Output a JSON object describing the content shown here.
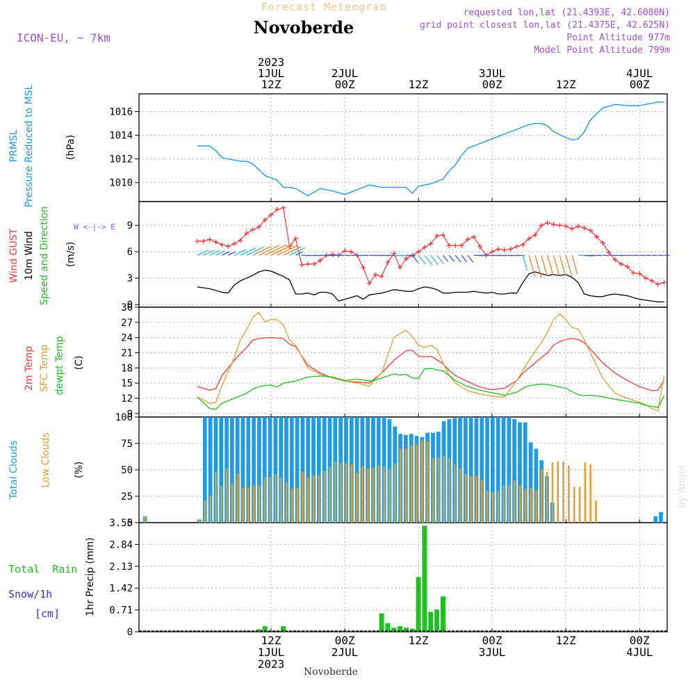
{
  "header": {
    "suptitle": "Forecast Meteogram",
    "title": "Novoberde",
    "model": "ICON-EU, ~ 7km",
    "info": [
      "requested lon,lat (21.4393E, 42.6080N)",
      "grid point closest lon,lat (21.4375E, 42.625N)",
      "Point Altitude 977m",
      "Model Point Altitude 799m"
    ],
    "watermark": "by Angel",
    "footer": "Novoberde"
  },
  "colors": {
    "pressure": "#1e9be6",
    "gust": "#f03c3c",
    "wind": "#000000",
    "wind_dir": "#20c020",
    "temp": "#f03c3c",
    "sfc": "#e0a030",
    "dew": "#20c020",
    "total_clouds": "#1e9be6",
    "low_clouds": "#e0a030",
    "rain": "#20c020",
    "snow": "#3030e0",
    "purple": "#a050d0"
  },
  "time_axis": {
    "top_ticks": [
      {
        "h": 12,
        "lines": [
          "2023",
          "1JUL",
          "12Z"
        ]
      },
      {
        "h": 24,
        "lines": [
          "2JUL",
          "00Z"
        ]
      },
      {
        "h": 36,
        "lines": [
          "12Z"
        ]
      },
      {
        "h": 48,
        "lines": [
          "3JUL",
          "00Z"
        ]
      },
      {
        "h": 60,
        "lines": [
          "12Z"
        ]
      },
      {
        "h": 72,
        "lines": [
          "4JUL",
          "00Z"
        ]
      }
    ],
    "bottom_ticks": [
      {
        "h": 12,
        "lines": [
          "12Z",
          "1JUL",
          "2023"
        ]
      },
      {
        "h": 24,
        "lines": [
          "00Z",
          "2JUL"
        ]
      },
      {
        "h": 36,
        "lines": [
          "12Z"
        ]
      },
      {
        "h": 48,
        "lines": [
          "00Z",
          "3JUL"
        ]
      },
      {
        "h": 60,
        "lines": [
          "12Z"
        ]
      },
      {
        "h": 72,
        "lines": [
          "00Z",
          "4JUL"
        ]
      }
    ]
  },
  "panels": {
    "pressure": {
      "labels": [
        "PRMSL",
        "Pressure Reduced to MSL"
      ],
      "unit": "(hPa)"
    },
    "wind": {
      "labels": [
        "Wind GUST",
        "10m Wind",
        "Speed and Direction"
      ],
      "unit": "(m/s)",
      "compass": "W <-|-> E"
    },
    "temp": {
      "labels": [
        "2m Temp",
        "SFC Temp",
        "dewpt Temp"
      ],
      "unit": "(C)"
    },
    "clouds": {
      "labels": [
        "Total Clouds",
        "Low Clouds"
      ],
      "unit": "(%)"
    },
    "precip": {
      "labels": [
        "Total  Rain",
        "Snow/1h",
        "[cm]"
      ],
      "unit": "1hr Precip (mm)"
    }
  },
  "chart_data": [
    {
      "type": "line",
      "name": "PRMSL",
      "ylabel": "(hPa)",
      "yticks": [
        1010,
        1012,
        1014,
        1016
      ],
      "ylim": [
        1008.4,
        1017.5
      ],
      "x_hours": [
        0,
        2,
        3,
        4,
        6,
        7,
        8,
        9,
        10,
        11,
        12,
        13,
        14,
        15,
        16,
        18,
        20,
        22,
        24,
        26,
        28,
        30,
        32,
        34,
        35,
        36,
        37,
        38,
        40,
        41,
        42,
        43,
        44,
        46,
        48,
        50,
        52,
        54,
        55,
        56,
        57,
        58,
        60,
        61,
        62,
        63,
        64,
        66,
        68,
        70,
        72,
        74,
        75,
        76
      ],
      "values": [
        1013.1,
        1013.1,
        1012.7,
        1012.1,
        1011.9,
        1011.8,
        1011.8,
        1011.6,
        1011.1,
        1010.6,
        1010.4,
        1010.2,
        1009.6,
        1009.6,
        1009.5,
        1008.9,
        1009.5,
        1009.3,
        1009.0,
        1009.4,
        1009.8,
        1009.6,
        1009.6,
        1009.6,
        1009.1,
        1009.7,
        1009.8,
        1009.9,
        1010.3,
        1011.0,
        1011.5,
        1012.3,
        1012.9,
        1013.3,
        1013.7,
        1014.1,
        1014.5,
        1014.9,
        1015.0,
        1015.0,
        1014.8,
        1014.3,
        1013.8,
        1013.6,
        1013.7,
        1014.3,
        1015.3,
        1016.3,
        1016.6,
        1016.5,
        1016.5,
        1016.7,
        1016.8,
        1016.8
      ]
    },
    {
      "type": "line",
      "name": "Wind",
      "ylabel": "(m/s)",
      "yticks": [
        0,
        3,
        6,
        9
      ],
      "ylim": [
        -0.3,
        11.7
      ],
      "series": [
        {
          "name": "Wind GUST",
          "x_hours": [
            0,
            1,
            2,
            3,
            4,
            5,
            6,
            7,
            8,
            9,
            10,
            11,
            12,
            13,
            14,
            15,
            16,
            17,
            18,
            19,
            20,
            21,
            22,
            23,
            24,
            25,
            26,
            27,
            28,
            29,
            30,
            31,
            32,
            33,
            34,
            35,
            36,
            37,
            38,
            39,
            40,
            41,
            42,
            43,
            44,
            45,
            46,
            47,
            48,
            49,
            50,
            51,
            52,
            53,
            54,
            55,
            56,
            57,
            58,
            59,
            60,
            61,
            62,
            63,
            64,
            65,
            66,
            67,
            68,
            69,
            70,
            71,
            72,
            73,
            74,
            75,
            76
          ],
          "values": [
            7.2,
            7.2,
            7.4,
            7.1,
            6.8,
            6.6,
            6.9,
            7.3,
            8.1,
            8.5,
            8.8,
            9.6,
            10.2,
            10.8,
            11.0,
            6.6,
            7.5,
            4.5,
            4.6,
            4.6,
            5.0,
            5.6,
            5.7,
            5.6,
            6.1,
            6.0,
            5.6,
            4.2,
            2.4,
            3.4,
            3.2,
            4.8,
            5.8,
            4.2,
            5.2,
            5.6,
            6.0,
            6.5,
            6.9,
            7.8,
            7.9,
            6.7,
            6.7,
            6.7,
            7.4,
            7.7,
            6.6,
            5.6,
            6.0,
            6.3,
            6.2,
            6.3,
            6.6,
            6.8,
            7.5,
            7.9,
            9.0,
            9.3,
            9.1,
            9.0,
            8.9,
            8.6,
            8.9,
            8.7,
            8.4,
            7.7,
            7.0,
            5.9,
            5.1,
            4.6,
            4.3,
            3.6,
            3.5,
            3.0,
            2.7,
            2.3,
            2.5
          ]
        },
        {
          "name": "10m Wind",
          "x_hours": [
            0,
            1,
            2,
            3,
            4,
            5,
            6,
            7,
            8,
            9,
            10,
            11,
            12,
            13,
            14,
            15,
            16,
            17,
            18,
            19,
            20,
            21,
            22,
            23,
            24,
            25,
            26,
            27,
            28,
            29,
            30,
            31,
            32,
            33,
            34,
            35,
            36,
            37,
            38,
            39,
            40,
            41,
            42,
            43,
            44,
            45,
            46,
            47,
            48,
            49,
            50,
            51,
            52,
            53,
            54,
            55,
            56,
            57,
            58,
            59,
            60,
            61,
            62,
            63,
            64,
            65,
            66,
            67,
            68,
            69,
            70,
            71,
            72,
            73,
            74,
            75,
            76
          ],
          "values": [
            2.0,
            1.9,
            1.8,
            1.6,
            1.4,
            1.3,
            2.2,
            2.7,
            3.0,
            3.3,
            3.7,
            3.9,
            3.8,
            3.5,
            3.2,
            2.8,
            1.2,
            1.2,
            1.3,
            1.1,
            1.4,
            1.4,
            1.2,
            0.4,
            0.6,
            0.8,
            1.0,
            0.6,
            1.1,
            1.2,
            1.3,
            1.5,
            1.7,
            1.6,
            1.5,
            1.5,
            1.8,
            2.0,
            1.9,
            1.7,
            1.3,
            1.3,
            1.4,
            1.4,
            1.4,
            1.5,
            1.4,
            1.3,
            1.4,
            1.2,
            1.2,
            1.3,
            1.3,
            2.5,
            3.5,
            3.7,
            3.5,
            3.3,
            3.4,
            3.3,
            3.4,
            3.1,
            2.5,
            1.2,
            1.0,
            0.9,
            0.9,
            1.1,
            1.2,
            1.1,
            1.0,
            0.8,
            0.6,
            0.5,
            0.4,
            0.3,
            0.3
          ]
        }
      ]
    },
    {
      "type": "line",
      "name": "Temperature",
      "ylabel": "(C)",
      "yticks": [
        9,
        12,
        15,
        18,
        21,
        24,
        27,
        30
      ],
      "ylim": [
        8.3,
        30
      ],
      "x_hours": [
        0,
        2,
        3,
        4,
        6,
        7,
        8,
        9,
        10,
        11,
        12,
        13,
        14,
        15,
        16,
        18,
        20,
        22,
        24,
        26,
        28,
        29,
        30,
        32,
        33,
        34,
        35,
        36,
        37,
        38,
        39,
        40,
        41,
        42,
        44,
        46,
        48,
        50,
        52,
        53,
        54,
        56,
        57,
        58,
        59,
        60,
        61,
        62,
        63,
        64,
        66,
        68,
        70,
        72,
        73,
        74,
        75,
        76
      ],
      "series": [
        {
          "name": "2m Temp",
          "values": [
            14.3,
            13.6,
            13.9,
            16.5,
            19.5,
            20.8,
            22.0,
            23.5,
            23.8,
            23.9,
            24.0,
            23.9,
            23.8,
            22.7,
            22.2,
            18.5,
            17.0,
            16.0,
            15.4,
            15.2,
            15.0,
            16.0,
            17.0,
            19.5,
            20.5,
            21.4,
            21.5,
            20.3,
            20.2,
            20.3,
            19.6,
            18.8,
            17.5,
            16.5,
            15.3,
            14.2,
            13.7,
            14.0,
            15.5,
            17.0,
            18.0,
            20.0,
            21.0,
            22.5,
            23.2,
            23.6,
            23.8,
            23.6,
            23.0,
            21.7,
            19.0,
            17.0,
            15.5,
            14.3,
            13.9,
            13.5,
            13.6,
            15.6
          ]
        },
        {
          "name": "SFC Temp",
          "values": [
            12.3,
            11.0,
            11.2,
            14.5,
            20.0,
            23.5,
            25.5,
            28.0,
            29.0,
            27.0,
            27.6,
            27.5,
            26.5,
            23.5,
            22.5,
            18.0,
            16.7,
            16.0,
            15.4,
            15.0,
            14.4,
            15.8,
            17.0,
            24.0,
            24.8,
            25.4,
            24.2,
            22.5,
            22.0,
            22.5,
            21.7,
            19.0,
            16.5,
            15.0,
            13.5,
            12.8,
            12.4,
            12.2,
            15.5,
            17.5,
            19.5,
            23.0,
            25.0,
            27.5,
            28.7,
            27.5,
            26.0,
            25.7,
            23.5,
            21.0,
            16.0,
            13.0,
            12.0,
            11.2,
            10.7,
            10.0,
            9.5,
            16.5
          ]
        },
        {
          "name": "dewpt Temp",
          "values": [
            12.2,
            10.0,
            9.8,
            11.0,
            12.0,
            12.5,
            13.0,
            13.8,
            14.3,
            14.5,
            14.6,
            14.2,
            15.0,
            15.2,
            15.4,
            16.2,
            16.4,
            16.2,
            15.5,
            15.8,
            15.4,
            15.6,
            16.0,
            16.8,
            16.6,
            16.7,
            16.0,
            15.9,
            17.8,
            17.9,
            17.6,
            17.4,
            16.5,
            15.5,
            14.3,
            13.6,
            13.1,
            12.6,
            13.2,
            14.0,
            14.5,
            14.8,
            14.7,
            14.5,
            14.2,
            14.0,
            13.3,
            12.7,
            12.5,
            12.6,
            12.3,
            11.8,
            11.4,
            11.0,
            10.6,
            10.4,
            10.2,
            12.5
          ]
        }
      ]
    },
    {
      "type": "bar",
      "name": "Clouds",
      "ylabel": "(%)",
      "yticks": [
        0,
        25,
        50,
        75,
        100
      ],
      "ylim": [
        0,
        100
      ],
      "series": [
        {
          "name": "Total Clouds",
          "values": [
            6,
            0,
            0,
            0,
            0,
            0,
            0,
            0,
            0,
            0,
            3,
            100,
            100,
            100,
            100,
            100,
            100,
            100,
            100,
            100,
            100,
            100,
            100,
            100,
            100,
            100,
            100,
            100,
            100,
            100,
            100,
            100,
            100,
            100,
            100,
            100,
            100,
            100,
            100,
            100,
            100,
            100,
            100,
            100,
            100,
            98,
            91,
            84,
            83,
            84,
            82,
            81,
            85,
            85,
            86,
            96,
            98,
            99,
            100,
            100,
            100,
            99,
            100,
            100,
            100,
            100,
            100,
            100,
            98,
            95,
            95,
            76,
            70,
            59,
            44,
            19,
            0,
            0,
            0,
            0,
            0,
            0,
            0,
            0,
            0,
            0,
            0,
            0,
            0,
            0,
            0,
            0,
            0,
            0,
            6,
            10
          ]
        },
        {
          "name": "Low Clouds",
          "values": [
            6,
            0,
            0,
            0,
            0,
            0,
            0,
            0,
            0,
            0,
            3,
            21,
            26,
            48,
            35,
            51,
            37,
            46,
            33,
            33,
            35,
            35,
            43,
            43,
            46,
            43,
            38,
            32,
            33,
            48,
            43,
            45,
            45,
            49,
            53,
            58,
            57,
            56,
            55,
            47,
            53,
            51,
            52,
            54,
            53,
            51,
            56,
            70,
            70,
            73,
            74,
            78,
            77,
            61,
            62,
            63,
            61,
            55,
            51,
            46,
            44,
            44,
            40,
            30,
            29,
            30,
            35,
            36,
            40,
            35,
            32,
            33,
            30,
            51,
            48,
            57,
            58,
            58,
            54,
            34,
            34,
            57,
            55,
            21,
            0,
            0,
            0,
            0,
            0,
            0,
            0,
            0,
            0,
            0,
            0,
            0
          ]
        }
      ]
    },
    {
      "type": "bar",
      "name": "Precipitation",
      "ylabel": "1hr Precip (mm)",
      "yticks": [
        0,
        0.71,
        1.42,
        2.13,
        2.84,
        3.55
      ],
      "ylim": [
        0,
        3.55
      ],
      "x_hours": [
        10,
        11,
        14,
        18,
        30,
        31,
        32,
        33,
        34,
        35,
        36,
        37,
        38,
        39,
        40
      ],
      "values": [
        0.08,
        0.18,
        0.18,
        0.03,
        0.6,
        0.28,
        0.13,
        0.18,
        0.13,
        0.1,
        1.78,
        3.45,
        0.65,
        0.72,
        1.15
      ]
    }
  ]
}
